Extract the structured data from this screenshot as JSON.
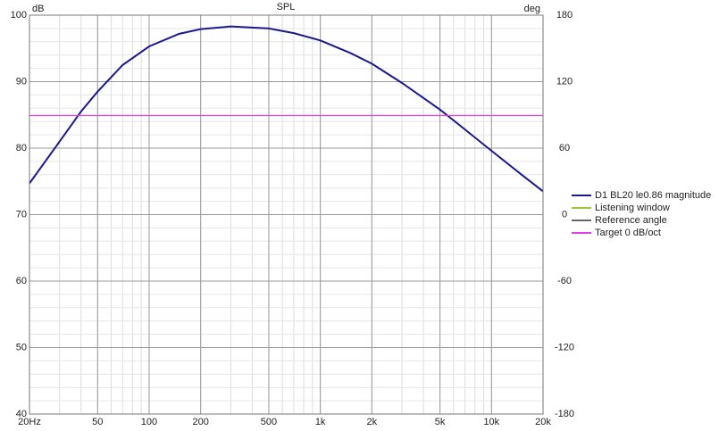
{
  "chart_data": {
    "type": "line",
    "title": "SPL",
    "y_label": "dB",
    "y2_label": "deg",
    "xscale": "log",
    "grid": true,
    "x": [
      20,
      30,
      40,
      50,
      70,
      100,
      150,
      200,
      300,
      500,
      700,
      1000,
      1500,
      2000,
      3000,
      5000,
      7000,
      10000,
      15000,
      20000
    ],
    "series": [
      {
        "name": "D1 BL20 le0.86 magnitude",
        "color": "#1a1a8c",
        "values": [
          74.7,
          81,
          85.5,
          88.5,
          92.5,
          95.3,
          97.2,
          97.9,
          98.3,
          98.0,
          97.3,
          96.2,
          94.3,
          92.7,
          89.8,
          85.8,
          82.8,
          79.6,
          76.0,
          73.5
        ]
      },
      {
        "name": "Listening window",
        "color": "#99cc33",
        "values": [
          null,
          null,
          null,
          null,
          null,
          null,
          null,
          null,
          null,
          null,
          null,
          null,
          null,
          null,
          null,
          null,
          null,
          null,
          null,
          null
        ]
      },
      {
        "name": "Reference angle",
        "color": "#666666",
        "values": [
          null,
          null,
          null,
          null,
          null,
          null,
          null,
          null,
          null,
          null,
          null,
          null,
          null,
          null,
          null,
          null,
          null,
          null,
          null,
          null
        ]
      },
      {
        "name": "Target 0 dB/oct",
        "color": "#e040e0",
        "values": [
          84.9,
          84.9,
          84.9,
          84.9,
          84.9,
          84.9,
          84.9,
          84.9,
          84.9,
          84.9,
          84.9,
          84.9,
          84.9,
          84.9,
          84.9,
          84.9,
          84.9,
          84.9,
          84.9,
          84.9
        ]
      }
    ],
    "xlim": [
      20,
      20000
    ],
    "xticks": [
      {
        "value": 20,
        "label": "20Hz"
      },
      50,
      100,
      200,
      500,
      {
        "value": 1000,
        "label": "1k"
      },
      {
        "value": 2000,
        "label": "2k"
      },
      {
        "value": 5000,
        "label": "5k"
      },
      {
        "value": 10000,
        "label": "10k"
      },
      {
        "value": 20000,
        "label": "20k"
      }
    ],
    "ylim": [
      40,
      100
    ],
    "yticks": [
      40,
      50,
      60,
      70,
      80,
      90,
      100
    ],
    "y2lim": [
      -180,
      180
    ],
    "y2ticks": [
      -180,
      -120,
      -60,
      0,
      60,
      120,
      180
    ]
  }
}
